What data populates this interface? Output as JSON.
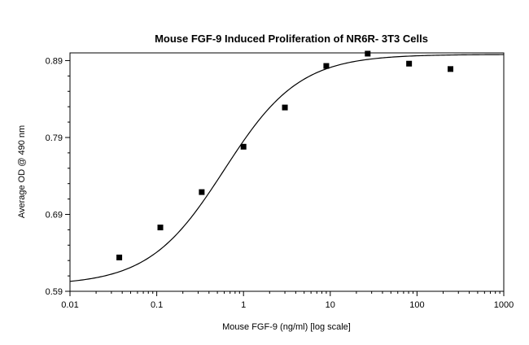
{
  "chart_data": {
    "type": "scatter",
    "title": "Mouse FGF-9 Induced Proliferation of NR6R- 3T3 Cells",
    "xlabel": "Mouse FGF-9 (ng/ml) [log scale]",
    "ylabel": "Average OD @ 490 nm",
    "x_scale": "log",
    "xlim": [
      0.01,
      1000
    ],
    "ylim": [
      0.59,
      0.9
    ],
    "x_ticks": [
      0.01,
      0.1,
      1,
      10,
      100,
      1000
    ],
    "x_tick_labels": [
      "0.01",
      "0.1",
      "1",
      "10",
      "100",
      "1000"
    ],
    "y_ticks": [
      0.59,
      0.69,
      0.79,
      0.89
    ],
    "y_tick_labels": [
      "0.59",
      "0.69",
      "0.79",
      "0.89"
    ],
    "grid": false,
    "series": [
      {
        "marker": "square",
        "x": [
          0.037,
          0.11,
          0.33,
          1,
          3,
          9,
          27,
          81,
          243
        ],
        "y": [
          0.634,
          0.673,
          0.719,
          0.778,
          0.829,
          0.883,
          0.899,
          0.886,
          0.879
        ]
      }
    ],
    "fit_curve": {
      "model": "4-parameter logistic",
      "bottom": 0.598,
      "top": 0.898,
      "ec50": 0.6,
      "hill": 1.0
    },
    "colors": {
      "marker": "#000000",
      "curve": "#000000",
      "axis": "#000000"
    }
  }
}
